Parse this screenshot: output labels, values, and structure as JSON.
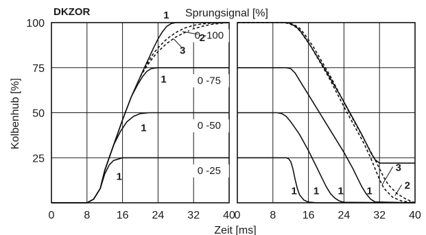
{
  "chart_data": [
    {
      "type": "line",
      "panel": "rise",
      "title": "DKZOR",
      "legend_title": "Sprungsignal [%]",
      "ylabel": "Kolbenhub [%]",
      "xlabel": "",
      "xlim": [
        0,
        40
      ],
      "ylim": [
        0,
        100
      ],
      "x_ticks": [
        "0",
        "8",
        "16",
        "24",
        "32",
        "40"
      ],
      "y_ticks": [
        "25",
        "50",
        "75",
        "100"
      ],
      "grid": true,
      "range_labels": [
        "0 -100",
        "0 -75",
        "0 -50",
        "0 -25"
      ],
      "series": [
        {
          "name": "0 -100",
          "curve": "1",
          "style": "solid",
          "x": [
            0,
            8,
            9.5,
            11,
            12,
            14,
            16,
            18,
            20,
            21.5,
            23,
            24,
            25,
            26,
            27,
            28,
            30,
            40
          ],
          "y": [
            0,
            0,
            2,
            8,
            18,
            32,
            46,
            59,
            70,
            78,
            86,
            91,
            95,
            98,
            99.5,
            100,
            100,
            100
          ]
        },
        {
          "name": "0 -100",
          "curve": "2",
          "style": "dashed",
          "x": [
            20,
            21.5,
            23,
            24,
            26,
            28,
            30,
            32,
            34,
            36,
            38,
            40
          ],
          "y": [
            70,
            77,
            83,
            86,
            91,
            94.5,
            97,
            98.5,
            99.3,
            99.7,
            99.9,
            100
          ]
        },
        {
          "name": "0 -100",
          "curve": "3",
          "style": "dashed",
          "x": [
            20,
            21.5,
            23,
            24,
            26,
            28,
            30,
            32,
            34,
            36,
            38,
            40
          ],
          "y": [
            70,
            76,
            81,
            84,
            88.5,
            92,
            94.5,
            96.5,
            98,
            99,
            99.6,
            100
          ]
        },
        {
          "name": "0 -75",
          "curve": "1",
          "style": "solid",
          "x": [
            0,
            8,
            9.5,
            11,
            12,
            14,
            16,
            18,
            19.5,
            20.5,
            21.5,
            22.5,
            24,
            40
          ],
          "y": [
            0,
            0,
            2,
            8,
            18,
            32,
            46,
            59,
            66,
            70,
            73,
            74.5,
            75,
            75
          ]
        },
        {
          "name": "0 -50",
          "curve": "1",
          "style": "solid",
          "x": [
            0,
            8,
            9.5,
            11,
            12,
            14,
            15.5,
            17,
            18.5,
            20,
            22,
            40
          ],
          "y": [
            0,
            0,
            2,
            8,
            18,
            32,
            39.5,
            45,
            48,
            49.5,
            50,
            50
          ]
        },
        {
          "name": "0 -25",
          "curve": "1",
          "style": "solid",
          "x": [
            0,
            8,
            9.5,
            11,
            12,
            13,
            14,
            16,
            40
          ],
          "y": [
            0,
            0,
            2,
            8,
            16,
            21,
            23.5,
            25,
            25
          ]
        }
      ],
      "curve_labels": [
        {
          "text": "1",
          "series": "0 -100",
          "x": 28,
          "y": 100
        },
        {
          "text": "2",
          "series": "0 -100",
          "x": 33,
          "y": 92
        },
        {
          "text": "3",
          "series": "0 -100",
          "x": 29.5,
          "y": 85
        },
        {
          "text": "1",
          "series": "0 -75",
          "x": 24,
          "y": 69
        },
        {
          "text": "1",
          "series": "0 -50",
          "x": 19.5,
          "y": 42
        },
        {
          "text": "1",
          "series": "0 -25",
          "x": 14,
          "y": 15
        }
      ]
    },
    {
      "type": "line",
      "panel": "fall",
      "xlabel": "Zeit [ms]",
      "xlim": [
        0,
        40
      ],
      "ylim": [
        0,
        100
      ],
      "x_ticks": [
        "0",
        "8",
        "16",
        "24",
        "32",
        "40"
      ],
      "grid": true,
      "series": [
        {
          "name": "100",
          "curve": "1",
          "style": "solid",
          "x": [
            0,
            10,
            11,
            12,
            13,
            14,
            16,
            20,
            24,
            26,
            28,
            29,
            30,
            31,
            32,
            40
          ],
          "y": [
            100,
            100,
            100,
            99.5,
            98,
            96,
            89,
            73,
            56,
            47,
            38,
            33,
            28,
            24,
            22,
            22
          ]
        },
        {
          "name": "100",
          "curve": "2",
          "style": "dashed",
          "x": [
            0,
            11,
            12,
            13,
            14,
            15,
            17,
            21,
            25,
            29,
            31,
            32,
            33,
            34,
            36,
            38,
            40
          ],
          "y": [
            100,
            100,
            99.5,
            98.5,
            97,
            94,
            87,
            70,
            51,
            33,
            24,
            19,
            14,
            10,
            5,
            2,
            0
          ]
        },
        {
          "name": "100",
          "curve": "3",
          "style": "dashed",
          "x": [
            0,
            10.5,
            11.5,
            12.5,
            13.5,
            14.5,
            16.5,
            20.5,
            24.5,
            28.5,
            30,
            31,
            32,
            33,
            35,
            37,
            40
          ],
          "y": [
            100,
            100,
            99.5,
            98.5,
            97,
            94,
            87,
            70,
            51,
            33,
            25,
            19,
            13,
            8,
            3,
            1,
            0
          ]
        },
        {
          "name": "75",
          "curve": "1",
          "style": "solid",
          "x": [
            0,
            10,
            11,
            12,
            13,
            14,
            16,
            20,
            24,
            26,
            27,
            28,
            29,
            30,
            31,
            40
          ],
          "y": [
            75,
            75,
            75,
            74.5,
            72,
            68,
            60,
            44,
            28,
            19,
            14,
            9,
            5,
            2,
            0.5,
            0
          ]
        },
        {
          "name": "50",
          "curve": "1",
          "style": "solid",
          "x": [
            0,
            8,
            9,
            10,
            11,
            12,
            14,
            16,
            18,
            19,
            20,
            21,
            22,
            23,
            24,
            40
          ],
          "y": [
            50,
            50,
            50,
            49.5,
            48,
            45,
            38,
            29,
            19,
            14,
            9,
            5,
            2.5,
            1,
            0.3,
            0
          ]
        },
        {
          "name": "25",
          "curve": "1",
          "style": "solid",
          "x": [
            0,
            11,
            11.5,
            12,
            12.5,
            13,
            13.5,
            14,
            15,
            16,
            18,
            40
          ],
          "y": [
            25,
            25,
            24.5,
            23,
            19,
            13,
            8,
            4.5,
            1.5,
            0.4,
            0,
            0
          ]
        }
      ],
      "curve_labels": [
        {
          "text": "1",
          "series": "25",
          "x": 11.5,
          "y": 7
        },
        {
          "text": "1",
          "series": "50",
          "x": 16.5,
          "y": 7
        },
        {
          "text": "1",
          "series": "75",
          "x": 22,
          "y": 7
        },
        {
          "text": "1",
          "series": "100",
          "x": 28.5,
          "y": 7
        },
        {
          "text": "3",
          "series": "100",
          "x": 35,
          "y": 20
        },
        {
          "text": "2",
          "series": "100",
          "x": 37,
          "y": 10
        }
      ]
    }
  ]
}
